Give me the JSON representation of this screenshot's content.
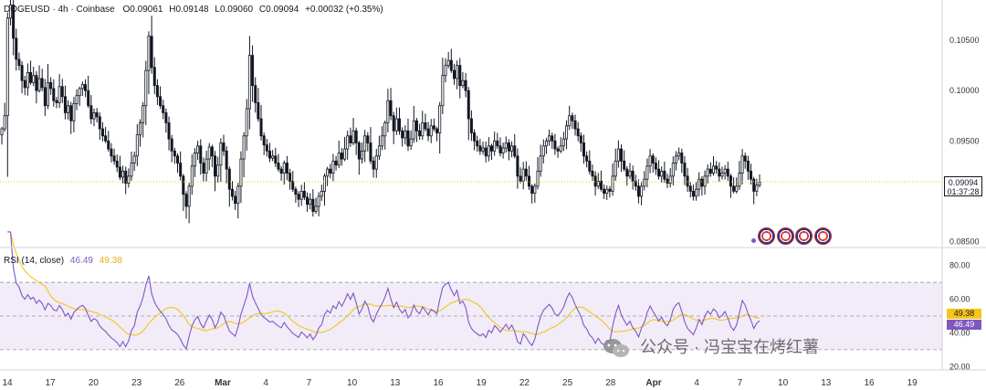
{
  "header": {
    "symbol": "DOGEUSD",
    "timeframe": "4h",
    "exchange": "Coinbase",
    "open_label": "O",
    "open": "0.09061",
    "high_label": "H",
    "high": "0.09148",
    "low_label": "L",
    "low": "0.09060",
    "close_label": "C",
    "close": "0.09094",
    "change": "+0.00032 (+0.35%)"
  },
  "rsi_header": {
    "label": "RSI (14, close)",
    "rsi_value": "46.49",
    "ma_value": "49.38"
  },
  "price_badge": {
    "price": "0.09094",
    "countdown": "01:37:28"
  },
  "watermark": {
    "text": "公众号 · 冯宝宝在烤红薯"
  },
  "colors": {
    "candle": "#131722",
    "rsi_line": "#7e57c2",
    "rsi_ma": "#f5c518",
    "rsi_band": "#ede7f6",
    "price_line": "#f5c518"
  },
  "chart_data": [
    {
      "type": "candlestick",
      "symbol": "DOGEUSD",
      "interval": "4h",
      "y_ticks": [
        "0.10500",
        "0.10000",
        "0.09500",
        "0.09000",
        "0.08500"
      ],
      "ylim": [
        0.0845,
        0.109
      ],
      "x_ticks": [
        "14",
        "17",
        "20",
        "23",
        "26",
        "Mar",
        "4",
        "7",
        "10",
        "13",
        "16",
        "19",
        "22",
        "25",
        "28",
        "Apr",
        "4",
        "7",
        "10",
        "13",
        "16",
        "19"
      ],
      "bold_ticks": [
        "Mar",
        "Apr"
      ],
      "last_price": 0.09094,
      "closes": [
        0.0962,
        0.0975,
        0.1072,
        0.1085,
        0.1052,
        0.1031,
        0.1025,
        0.101,
        0.1003,
        0.1018,
        0.1008,
        0.1015,
        0.1,
        0.1012,
        0.1003,
        0.0985,
        0.1008,
        0.1002,
        0.099,
        0.0988,
        0.1004,
        0.0994,
        0.0978,
        0.0985,
        0.097,
        0.0987,
        0.0995,
        0.1002,
        0.1006,
        0.1,
        0.0985,
        0.0972,
        0.0978,
        0.0974,
        0.0962,
        0.0955,
        0.095,
        0.0942,
        0.0935,
        0.093,
        0.0924,
        0.0914,
        0.092,
        0.0908,
        0.0915,
        0.0928,
        0.0935,
        0.0956,
        0.0968,
        0.0985,
        0.102,
        0.1054,
        0.1023,
        0.1005,
        0.0994,
        0.0985,
        0.0978,
        0.0968,
        0.0952,
        0.094,
        0.0935,
        0.0928,
        0.0915,
        0.0897,
        0.0885,
        0.0905,
        0.0925,
        0.0938,
        0.0945,
        0.0928,
        0.0918,
        0.0932,
        0.0944,
        0.0935,
        0.0915,
        0.0926,
        0.0948,
        0.094,
        0.0922,
        0.0902,
        0.0895,
        0.0888,
        0.0905,
        0.0932,
        0.0955,
        0.0982,
        0.1035,
        0.1005,
        0.0988,
        0.0972,
        0.0955,
        0.0946,
        0.094,
        0.0933,
        0.0935,
        0.0928,
        0.0922,
        0.0918,
        0.0928,
        0.0918,
        0.091,
        0.0902,
        0.0897,
        0.0892,
        0.09,
        0.0894,
        0.0887,
        0.0892,
        0.088,
        0.0885,
        0.0895,
        0.09,
        0.0915,
        0.0922,
        0.0918,
        0.093,
        0.0926,
        0.0938,
        0.0932,
        0.0942,
        0.0955,
        0.0948,
        0.096,
        0.0948,
        0.0932,
        0.094,
        0.0955,
        0.0948,
        0.093,
        0.0922,
        0.0935,
        0.0945,
        0.0955,
        0.0968,
        0.099,
        0.0975,
        0.096,
        0.0972,
        0.096,
        0.0953,
        0.096,
        0.0945,
        0.0952,
        0.097,
        0.096,
        0.0955,
        0.0968,
        0.0962,
        0.0955,
        0.0965,
        0.0962,
        0.0958,
        0.0985,
        0.1015,
        0.1025,
        0.103,
        0.102,
        0.1012,
        0.1025,
        0.1005,
        0.101,
        0.1,
        0.0972,
        0.0958,
        0.095,
        0.0945,
        0.094,
        0.0943,
        0.0935,
        0.0945,
        0.094,
        0.095,
        0.0945,
        0.0938,
        0.0943,
        0.0948,
        0.094,
        0.0945,
        0.0935,
        0.0915,
        0.091,
        0.0922,
        0.0915,
        0.0905,
        0.0898,
        0.0905,
        0.092,
        0.0935,
        0.0945,
        0.095,
        0.0955,
        0.095,
        0.0942,
        0.094,
        0.0945,
        0.0952,
        0.0965,
        0.0975,
        0.097,
        0.0962,
        0.0955,
        0.0948,
        0.0935,
        0.093,
        0.092,
        0.0915,
        0.0905,
        0.091,
        0.0902,
        0.0898,
        0.0902,
        0.09,
        0.0915,
        0.093,
        0.0942,
        0.093,
        0.0922,
        0.0915,
        0.092,
        0.091,
        0.0905,
        0.0895,
        0.0905,
        0.0912,
        0.0925,
        0.0935,
        0.0928,
        0.0922,
        0.0915,
        0.092,
        0.0912,
        0.0908,
        0.0915,
        0.0928,
        0.0935,
        0.0938,
        0.0928,
        0.0915,
        0.0905,
        0.09,
        0.0895,
        0.0902,
        0.0912,
        0.0905,
        0.0915,
        0.0922,
        0.0918,
        0.0925,
        0.0922,
        0.0915,
        0.0918,
        0.0922,
        0.0915,
        0.0905,
        0.09,
        0.0905,
        0.0918,
        0.0935,
        0.093,
        0.092,
        0.0912,
        0.09,
        0.0906,
        0.0909
      ]
    },
    {
      "type": "line",
      "title": "RSI (14, close)",
      "y_ticks": [
        "80.00",
        "60.00",
        "40.00",
        "20.00"
      ],
      "ylim": [
        18,
        88
      ],
      "band": [
        30,
        70
      ],
      "midline": 50,
      "series": [
        {
          "name": "RSI",
          "last": 46.49
        },
        {
          "name": "MA",
          "last": 49.38
        }
      ]
    }
  ]
}
